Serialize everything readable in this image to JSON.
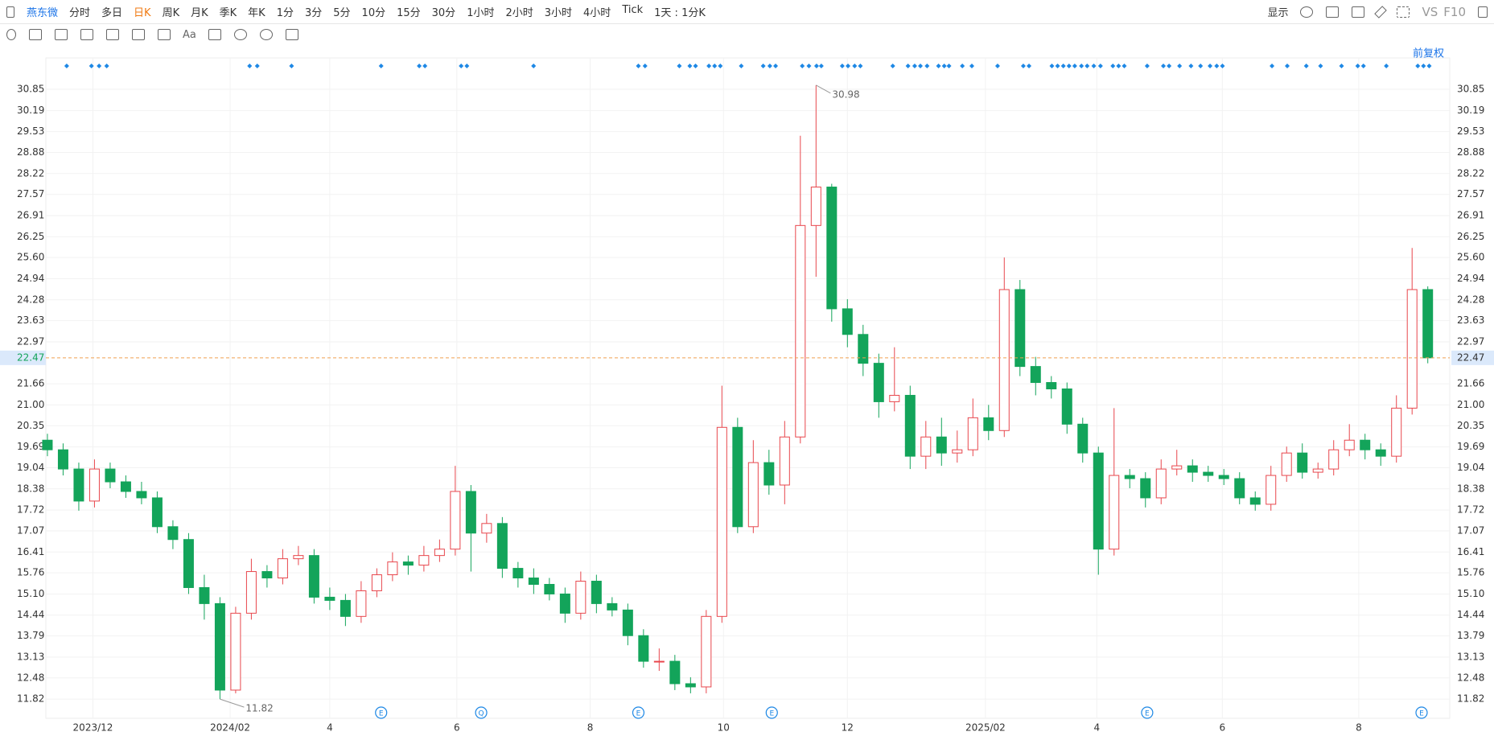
{
  "toolbar": {
    "symbol": "燕东微",
    "periods": [
      "分时",
      "多日",
      "日K",
      "周K",
      "月K",
      "季K",
      "年K",
      "1分",
      "3分",
      "5分",
      "10分",
      "15分",
      "30分",
      "1小时",
      "2小时",
      "3小时",
      "4小时",
      "Tick",
      "1天 : 1分K"
    ],
    "right": [
      "显示",
      "VS",
      "F10"
    ],
    "tools_text": "Aa",
    "adjust": "前复权"
  },
  "chart_data": {
    "type": "candlestick",
    "up_color": "#e8474d",
    "down_color": "#13a45a",
    "grid": true,
    "xlim": [
      -0.1,
      89.4
    ],
    "ylim": [
      11.22,
      31.83
    ],
    "xticks": [
      {
        "value": 2.9,
        "label": "2023/12"
      },
      {
        "value": 11.65,
        "label": "2024/02"
      },
      {
        "value": 18.0,
        "label": "4"
      },
      {
        "value": 26.1,
        "label": "6"
      },
      {
        "value": 34.6,
        "label": "8"
      },
      {
        "value": 43.1,
        "label": "10"
      },
      {
        "value": 51.0,
        "label": "12"
      },
      {
        "value": 59.8,
        "label": "2025/02"
      },
      {
        "value": 66.9,
        "label": "4"
      },
      {
        "value": 74.9,
        "label": "6"
      },
      {
        "value": 83.6,
        "label": "8"
      }
    ],
    "yticks": [
      11.82,
      12.48,
      13.13,
      13.79,
      14.44,
      {
        "value": 15.1,
        "label": "15.10"
      },
      15.76,
      16.41,
      17.07,
      17.72,
      18.38,
      19.04,
      19.69,
      20.35,
      {
        "value": 21,
        "label": "21.00"
      },
      21.66,
      22.97,
      23.63,
      24.28,
      24.94,
      {
        "value": 25.6,
        "label": "25.60"
      },
      26.25,
      26.91,
      27.57,
      28.22,
      28.88,
      29.53,
      30.19,
      30.85
    ],
    "open": [
      19.9,
      19.6,
      19.0,
      18.0,
      19.0,
      18.6,
      18.3,
      18.1,
      17.2,
      16.8,
      15.3,
      14.8,
      12.1,
      14.5,
      15.8,
      15.6,
      16.2,
      16.3,
      15.0,
      14.9,
      14.4,
      15.2,
      15.7,
      16.1,
      16.0,
      16.3,
      16.5,
      18.3,
      17.0,
      17.3,
      15.9,
      15.6,
      15.4,
      15.1,
      14.5,
      15.5,
      14.8,
      14.6,
      13.8,
      13.0,
      13.0,
      12.3,
      12.2,
      14.4,
      20.3,
      17.2,
      19.2,
      18.5,
      20.0,
      26.6,
      27.8,
      24.0,
      23.2,
      22.3,
      21.1,
      21.3,
      19.4,
      20.0,
      19.5,
      19.6,
      20.6,
      20.2,
      24.6,
      22.2,
      21.7,
      21.5,
      20.4,
      19.5,
      16.5,
      18.8,
      18.7,
      18.1,
      19.0,
      19.1,
      18.9,
      18.8,
      18.7,
      18.1,
      17.9,
      18.8,
      19.5,
      18.9,
      19.0,
      19.6,
      19.9,
      19.6,
      19.4,
      20.9,
      24.6
    ],
    "high": [
      20.1,
      19.8,
      19.2,
      19.3,
      19.2,
      18.8,
      18.6,
      18.3,
      17.4,
      17.0,
      15.7,
      15.0,
      14.7,
      16.2,
      16.0,
      16.5,
      16.6,
      16.5,
      15.3,
      15.1,
      15.5,
      15.9,
      16.4,
      16.3,
      16.6,
      16.8,
      19.1,
      18.5,
      17.6,
      17.5,
      16.1,
      15.9,
      15.6,
      15.3,
      15.8,
      15.7,
      15.0,
      14.8,
      14.0,
      13.4,
      13.2,
      12.5,
      14.6,
      21.6,
      20.6,
      19.9,
      19.6,
      20.5,
      29.4,
      30.98,
      27.9,
      24.3,
      23.5,
      22.6,
      22.8,
      21.6,
      20.5,
      20.6,
      20.2,
      21.2,
      21.0,
      25.6,
      24.9,
      22.5,
      21.9,
      21.7,
      20.6,
      19.7,
      20.9,
      19.0,
      18.9,
      19.3,
      19.6,
      19.3,
      19.1,
      19.0,
      18.9,
      18.3,
      19.1,
      19.7,
      19.8,
      19.2,
      19.9,
      20.4,
      20.1,
      19.8,
      21.3,
      25.9,
      24.7
    ],
    "low": [
      19.4,
      18.8,
      17.7,
      17.8,
      18.4,
      18.1,
      17.9,
      17.0,
      16.5,
      15.1,
      14.3,
      11.82,
      12.0,
      14.3,
      15.3,
      15.4,
      16.0,
      14.8,
      14.6,
      14.1,
      14.2,
      15.0,
      15.5,
      15.7,
      15.8,
      16.1,
      16.3,
      15.8,
      16.7,
      15.6,
      15.3,
      15.1,
      14.9,
      14.2,
      14.3,
      14.5,
      14.4,
      13.5,
      12.8,
      12.7,
      12.1,
      12.0,
      12.0,
      14.2,
      17.0,
      17.0,
      18.2,
      17.9,
      19.8,
      25.0,
      23.6,
      22.8,
      21.9,
      20.6,
      20.8,
      19.0,
      19.0,
      19.1,
      19.2,
      19.4,
      19.9,
      20.0,
      21.9,
      21.3,
      21.2,
      20.1,
      19.2,
      15.7,
      16.3,
      18.4,
      17.8,
      17.9,
      18.8,
      18.6,
      18.6,
      18.5,
      17.9,
      17.7,
      17.7,
      18.6,
      18.7,
      18.7,
      18.8,
      19.4,
      19.3,
      19.1,
      19.2,
      20.7,
      22.3
    ],
    "close": [
      19.6,
      19.0,
      18.0,
      19.0,
      18.6,
      18.3,
      18.1,
      17.2,
      16.8,
      15.3,
      14.8,
      12.1,
      14.5,
      15.8,
      15.6,
      16.2,
      16.3,
      15.0,
      14.9,
      14.4,
      15.2,
      15.7,
      16.1,
      16.0,
      16.3,
      16.5,
      18.3,
      17.0,
      17.3,
      15.9,
      15.6,
      15.4,
      15.1,
      14.5,
      15.5,
      14.8,
      14.6,
      13.8,
      13.0,
      13.0,
      12.3,
      12.2,
      14.4,
      20.3,
      17.2,
      19.2,
      18.5,
      20.0,
      26.6,
      27.8,
      24.0,
      23.2,
      22.3,
      21.1,
      21.3,
      19.4,
      20.0,
      19.5,
      19.6,
      20.6,
      20.2,
      24.6,
      22.2,
      21.7,
      21.5,
      20.4,
      19.5,
      16.5,
      18.8,
      18.7,
      18.1,
      19.0,
      19.1,
      18.9,
      18.8,
      18.7,
      18.1,
      17.9,
      18.8,
      19.5,
      18.9,
      19.0,
      19.6,
      19.9,
      19.6,
      19.4,
      20.9,
      24.6,
      22.47
    ],
    "event_labels": [
      "E",
      "Q",
      "E",
      "E",
      "E",
      "E"
    ]
  }
}
